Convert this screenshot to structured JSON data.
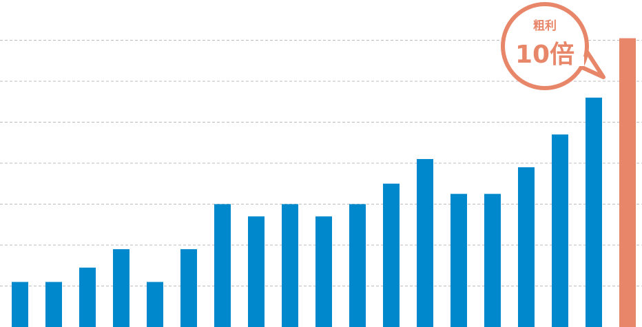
{
  "colors": {
    "bar": "#0088cc",
    "highlight_bar": "#e8866a",
    "grid": "#bbbbbb",
    "callout": "#e8866a"
  },
  "callout": {
    "label": "粗利",
    "value": "10倍"
  },
  "chart_data": {
    "type": "bar",
    "title": "",
    "xlabel": "",
    "ylabel": "",
    "grid": true,
    "ylim": [
      0,
      7
    ],
    "values": [
      1.1,
      1.1,
      1.45,
      1.9,
      1.1,
      1.9,
      3.0,
      2.7,
      3.0,
      2.7,
      3.0,
      3.5,
      4.1,
      3.25,
      3.25,
      3.9,
      4.7,
      5.6,
      7.05
    ],
    "highlight_index": 18
  }
}
